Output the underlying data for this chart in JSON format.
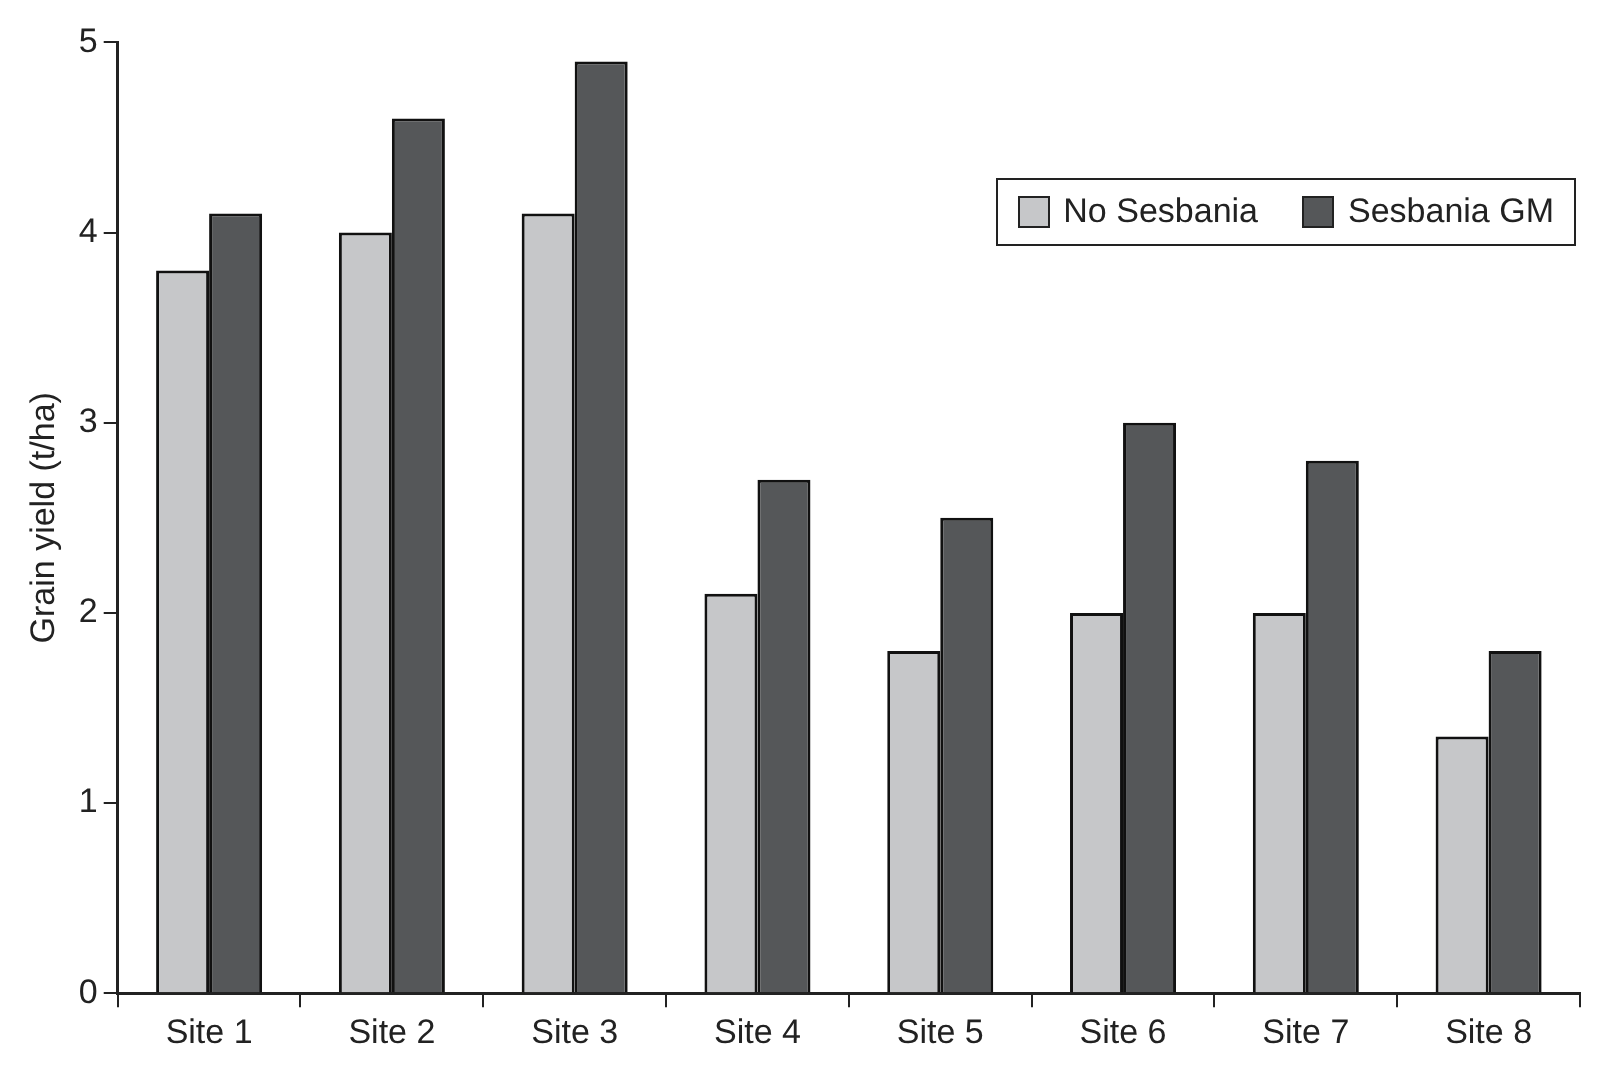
{
  "chart_data": {
    "type": "bar",
    "ylabel": "Grain yield (t/ha)",
    "categories": [
      "Site 1",
      "Site 2",
      "Site 3",
      "Site 4",
      "Site 5",
      "Site 6",
      "Site 7",
      "Site 8"
    ],
    "series": [
      {
        "name": "No Sesbania",
        "color": "#c6c7c9",
        "values": [
          3.8,
          4.0,
          4.1,
          2.1,
          1.8,
          2.0,
          2.0,
          1.35
        ]
      },
      {
        "name": "Sesbania GM",
        "color": "#555759",
        "values": [
          4.1,
          4.6,
          4.9,
          2.7,
          2.5,
          3.0,
          2.8,
          1.8
        ]
      }
    ],
    "ylim": [
      0,
      5
    ],
    "yticks": [
      0,
      1,
      2,
      3,
      4,
      5
    ],
    "grid": false,
    "legend": "top right"
  }
}
